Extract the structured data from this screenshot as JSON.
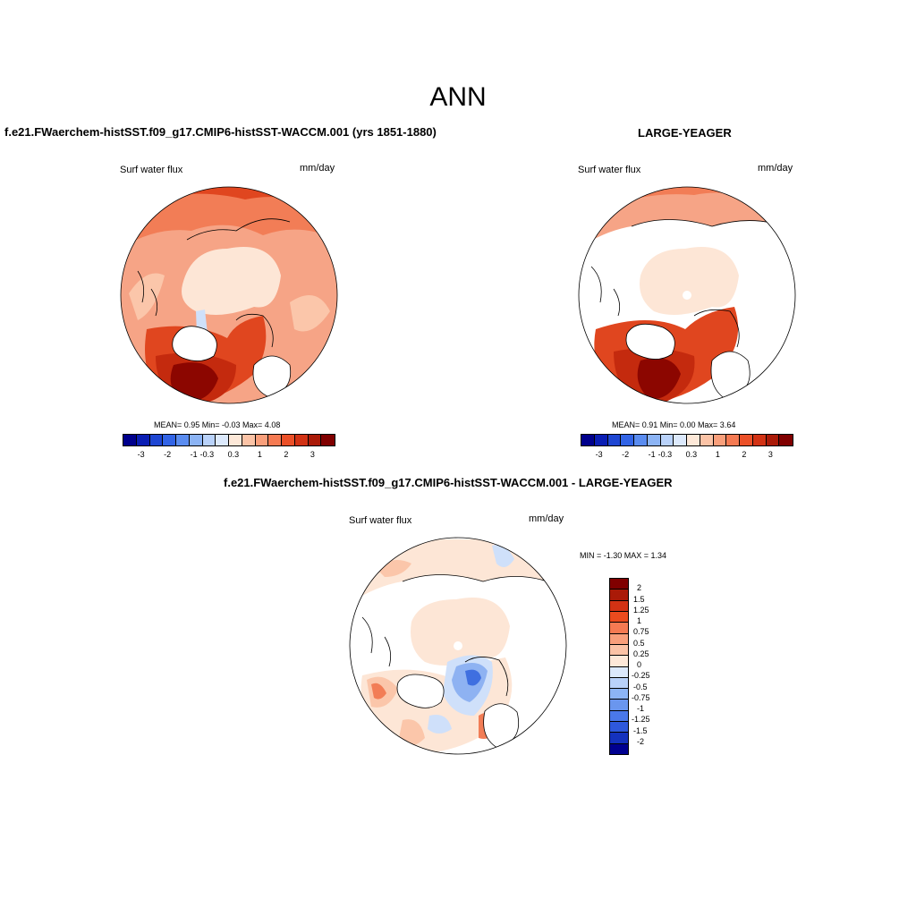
{
  "title": "ANN",
  "panels": [
    {
      "title": "f.e21.FWaerchem-histSST.f09_g17.CMIP6-histSST-WACCM.001 (yrs 1851-1880)",
      "left_label": "Surf water flux",
      "right_label": "mm/day",
      "stats": "MEAN=   0.95  Min=   -0.03  Max=   4.08"
    },
    {
      "title": "LARGE-YEAGER",
      "left_label": "Surf water flux",
      "right_label": "mm/day",
      "stats": "MEAN=   0.91  Min=   0.00  Max=   3.64"
    },
    {
      "title": "f.e21.FWaerchem-histSST.f09_g17.CMIP6-histSST-WACCM.001 - LARGE-YEAGER",
      "left_label": "Surf water flux",
      "right_label": "mm/day",
      "stats": "MIN =  -1.30 MAX =   1.34"
    }
  ],
  "colorbar_h": {
    "colors": [
      "#00008c",
      "#0a1eb4",
      "#1e46d2",
      "#3264e6",
      "#5a8cf0",
      "#8cb4f5",
      "#b9d2fa",
      "#dce9fc",
      "#fde8d8",
      "#fbc3a6",
      "#f99f7b",
      "#f57a52",
      "#eb5028",
      "#d23214",
      "#aa1a08",
      "#800000"
    ],
    "ticks": [
      "-3",
      "-2",
      "-1",
      "-0.3",
      "0.3",
      "1",
      "2",
      "3"
    ]
  },
  "colorbar_v": {
    "colors": [
      "#800000",
      "#aa1a08",
      "#d23214",
      "#eb4b1e",
      "#f57a52",
      "#f99f7b",
      "#fbc3a6",
      "#fde8d8",
      "#dce9fc",
      "#b9d2fa",
      "#8cb4f5",
      "#6a96ee",
      "#4a78ea",
      "#2e58dc",
      "#1432be",
      "#000090"
    ],
    "ticks": [
      "2",
      "1.5",
      "1.25",
      "1",
      "0.75",
      "0.5",
      "0.25",
      "0",
      "-0.25",
      "-0.5",
      "-0.75",
      "-1",
      "-1.25",
      "-1.5",
      "-2"
    ]
  },
  "map_colors": {
    "ocean_base": "#f6a486",
    "ocean_light": "#fbc6aa",
    "ocean_mid": "#f27d56",
    "ocean_strong": "#e0461f",
    "ocean_stronger": "#c42a0e",
    "ocean_max": "#8c0600",
    "ice": "#fde6d6",
    "neg": "#cfe0fa",
    "neg_mid": "#8eb2f2",
    "neg_strong": "#3f6fe0",
    "land": "#ffffff",
    "coast": "#000000"
  }
}
